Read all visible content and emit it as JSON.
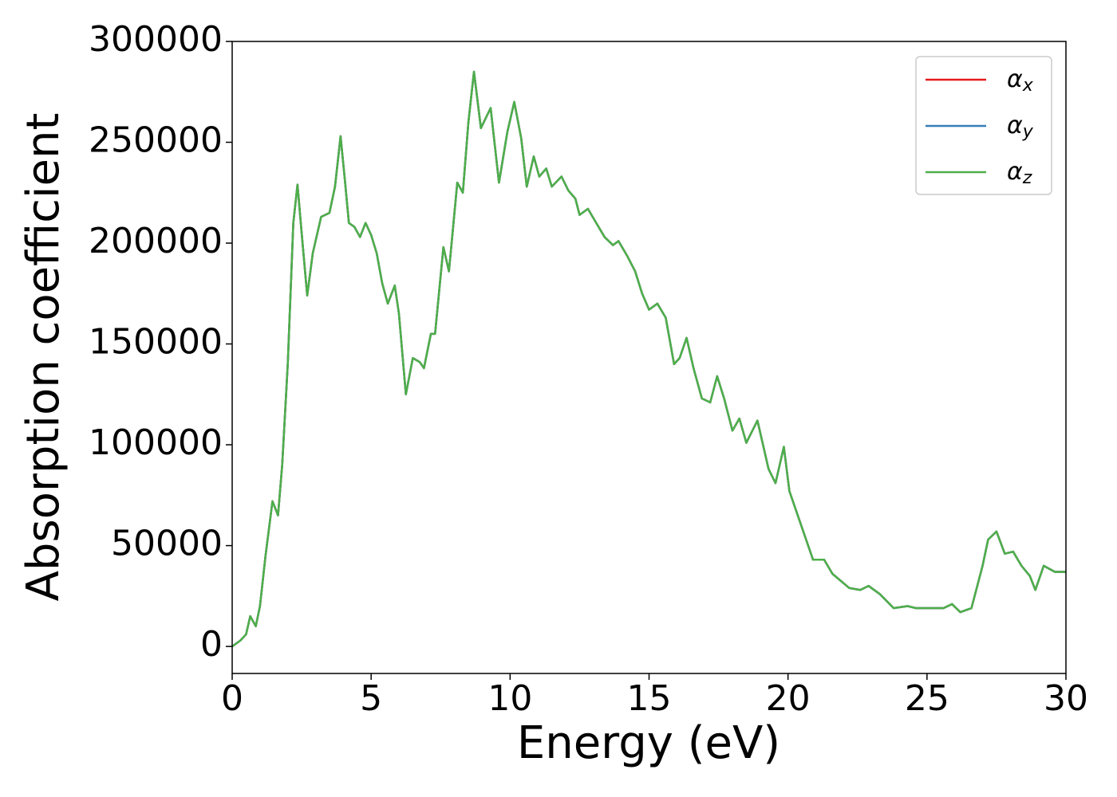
{
  "chart_data": {
    "type": "line",
    "xlabel": "Energy (eV)",
    "ylabel": "Absorption coefficient",
    "xlim": [
      0,
      30
    ],
    "ylim": [
      -13400,
      300000
    ],
    "xticks": [
      0,
      5,
      10,
      15,
      20,
      25,
      30
    ],
    "yticks": [
      0,
      50000,
      100000,
      150000,
      200000,
      250000,
      300000
    ],
    "legend": "upper right",
    "x": [
      0,
      0.3,
      0.5,
      0.65,
      0.85,
      1.0,
      1.2,
      1.45,
      1.65,
      1.8,
      2.0,
      2.2,
      2.35,
      2.5,
      2.7,
      2.9,
      3.2,
      3.5,
      3.7,
      3.9,
      4.05,
      4.2,
      4.4,
      4.6,
      4.8,
      5.0,
      5.2,
      5.4,
      5.6,
      5.85,
      6.0,
      6.25,
      6.5,
      6.75,
      6.9,
      7.15,
      7.3,
      7.6,
      7.8,
      8.1,
      8.3,
      8.5,
      8.7,
      8.95,
      9.3,
      9.6,
      9.9,
      10.15,
      10.4,
      10.6,
      10.85,
      11.05,
      11.3,
      11.5,
      11.85,
      12.1,
      12.35,
      12.5,
      12.8,
      13.1,
      13.4,
      13.7,
      13.9,
      14.2,
      14.5,
      14.75,
      15.0,
      15.3,
      15.6,
      15.9,
      16.1,
      16.35,
      16.6,
      16.9,
      17.2,
      17.45,
      17.7,
      18.0,
      18.25,
      18.5,
      18.9,
      19.3,
      19.55,
      19.85,
      20.05,
      20.4,
      20.9,
      21.3,
      21.6,
      22.2,
      22.6,
      22.9,
      23.3,
      23.8,
      24.3,
      24.6,
      25.2,
      25.6,
      25.9,
      26.2,
      26.6,
      27.0,
      27.2,
      27.5,
      27.8,
      28.1,
      28.4,
      28.7,
      28.9,
      29.2,
      29.6,
      30.0
    ],
    "series": [
      {
        "name": "α_x",
        "color": "#e41a1c",
        "values": [
          0,
          3000,
          6000,
          15000,
          10000,
          20000,
          45000,
          72000,
          65000,
          90000,
          140000,
          210000,
          229000,
          205000,
          174000,
          195000,
          213000,
          215000,
          228000,
          253000,
          232000,
          210000,
          208000,
          203000,
          210000,
          204000,
          195000,
          180000,
          170000,
          179000,
          165000,
          125000,
          143000,
          141000,
          138000,
          155000,
          155000,
          198000,
          186000,
          230000,
          225000,
          260000,
          285000,
          257000,
          267000,
          230000,
          255000,
          270000,
          252000,
          228000,
          243000,
          233000,
          237000,
          228000,
          233000,
          226000,
          222000,
          214000,
          217000,
          210000,
          203000,
          199000,
          201000,
          194000,
          186000,
          175000,
          167000,
          170000,
          163000,
          140000,
          143000,
          153000,
          138000,
          123000,
          121000,
          134000,
          123000,
          107000,
          113000,
          101000,
          112000,
          88000,
          81000,
          99000,
          77000,
          63000,
          43000,
          43000,
          36000,
          29000,
          28000,
          30000,
          26000,
          19000,
          20000,
          19000,
          19000,
          19000,
          21000,
          17000,
          19000,
          40000,
          53000,
          57000,
          46000,
          47000,
          40000,
          35000,
          28000,
          40000,
          37000,
          37000
        ]
      },
      {
        "name": "α_y",
        "color": "#377eb8",
        "values": [
          0,
          3000,
          6000,
          15000,
          10000,
          20000,
          45000,
          72000,
          65000,
          90000,
          140000,
          210000,
          229000,
          205000,
          174000,
          195000,
          213000,
          215000,
          228000,
          253000,
          232000,
          210000,
          208000,
          203000,
          210000,
          204000,
          195000,
          180000,
          170000,
          179000,
          165000,
          125000,
          143000,
          141000,
          138000,
          155000,
          155000,
          198000,
          186000,
          230000,
          225000,
          260000,
          285000,
          257000,
          267000,
          230000,
          255000,
          270000,
          252000,
          228000,
          243000,
          233000,
          237000,
          228000,
          233000,
          226000,
          222000,
          214000,
          217000,
          210000,
          203000,
          199000,
          201000,
          194000,
          186000,
          175000,
          167000,
          170000,
          163000,
          140000,
          143000,
          153000,
          138000,
          123000,
          121000,
          134000,
          123000,
          107000,
          113000,
          101000,
          112000,
          88000,
          81000,
          99000,
          77000,
          63000,
          43000,
          43000,
          36000,
          29000,
          28000,
          30000,
          26000,
          19000,
          20000,
          19000,
          19000,
          19000,
          21000,
          17000,
          19000,
          40000,
          53000,
          57000,
          46000,
          47000,
          40000,
          35000,
          28000,
          40000,
          37000,
          37000
        ]
      },
      {
        "name": "α_z",
        "color": "#4daf4a",
        "values": [
          0,
          3000,
          6000,
          15000,
          10000,
          20000,
          45000,
          72000,
          65000,
          90000,
          140000,
          210000,
          229000,
          205000,
          174000,
          195000,
          213000,
          215000,
          228000,
          253000,
          232000,
          210000,
          208000,
          203000,
          210000,
          204000,
          195000,
          180000,
          170000,
          179000,
          165000,
          125000,
          143000,
          141000,
          138000,
          155000,
          155000,
          198000,
          186000,
          230000,
          225000,
          260000,
          285000,
          257000,
          267000,
          230000,
          255000,
          270000,
          252000,
          228000,
          243000,
          233000,
          237000,
          228000,
          233000,
          226000,
          222000,
          214000,
          217000,
          210000,
          203000,
          199000,
          201000,
          194000,
          186000,
          175000,
          167000,
          170000,
          163000,
          140000,
          143000,
          153000,
          138000,
          123000,
          121000,
          134000,
          123000,
          107000,
          113000,
          101000,
          112000,
          88000,
          81000,
          99000,
          77000,
          63000,
          43000,
          43000,
          36000,
          29000,
          28000,
          30000,
          26000,
          19000,
          20000,
          19000,
          19000,
          19000,
          21000,
          17000,
          19000,
          40000,
          53000,
          57000,
          46000,
          47000,
          40000,
          35000,
          28000,
          40000,
          37000,
          37000
        ]
      }
    ]
  }
}
